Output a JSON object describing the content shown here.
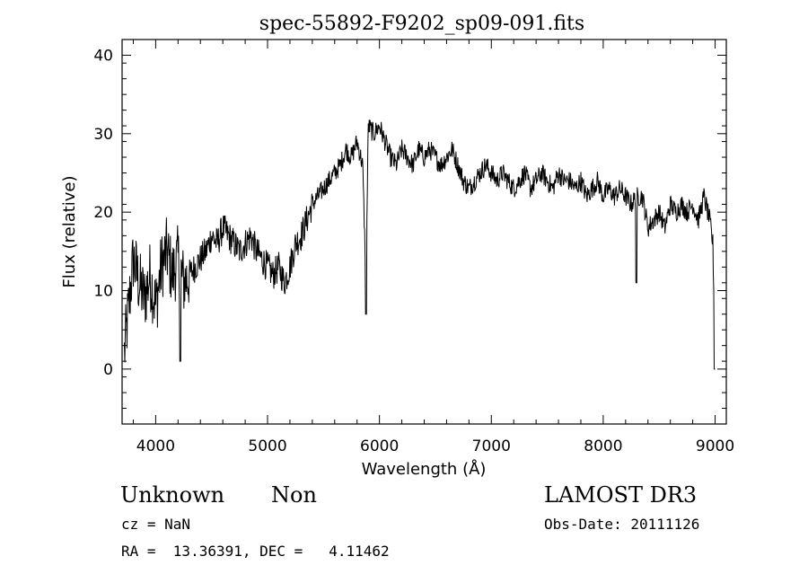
{
  "chart_data": {
    "type": "line",
    "title": "spec-55892-F9202_sp09-091.fits",
    "xlabel": "Wavelength (Å)",
    "ylabel": "Flux (relative)",
    "xlim": [
      3700,
      9100
    ],
    "ylim": [
      -7,
      42
    ],
    "xticks": [
      4000,
      5000,
      6000,
      7000,
      8000,
      9000
    ],
    "yticks": [
      0,
      10,
      20,
      30,
      40
    ],
    "grid": false,
    "series": [
      {
        "name": "flux",
        "color": "#000000",
        "x": [
          3720,
          3760,
          3800,
          3850,
          3900,
          3950,
          4000,
          4050,
          4100,
          4150,
          4200,
          4250,
          4300,
          4350,
          4400,
          4450,
          4500,
          4550,
          4600,
          4650,
          4700,
          4750,
          4800,
          4850,
          4900,
          4950,
          5000,
          5050,
          5100,
          5150,
          5200,
          5250,
          5300,
          5350,
          5400,
          5450,
          5500,
          5550,
          5600,
          5650,
          5700,
          5750,
          5800,
          5850,
          5880,
          5900,
          5950,
          6000,
          6050,
          6100,
          6150,
          6200,
          6250,
          6300,
          6350,
          6400,
          6450,
          6500,
          6550,
          6600,
          6650,
          6700,
          6750,
          6800,
          6850,
          6900,
          6950,
          7000,
          7050,
          7100,
          7150,
          7200,
          7250,
          7300,
          7350,
          7400,
          7450,
          7500,
          7550,
          7600,
          7650,
          7700,
          7750,
          7800,
          7850,
          7900,
          7950,
          8000,
          8050,
          8100,
          8150,
          8200,
          8250,
          8300,
          8350,
          8400,
          8450,
          8500,
          8550,
          8600,
          8650,
          8700,
          8750,
          8800,
          8850,
          8900,
          8950,
          8980,
          9000
        ],
        "y": [
          2,
          8,
          14,
          11,
          9,
          12,
          8,
          13,
          15,
          12,
          14,
          11,
          12,
          13,
          14,
          15,
          17,
          16,
          18,
          17,
          16,
          15,
          16,
          17,
          15,
          14,
          13,
          12,
          13,
          11,
          13,
          16,
          17,
          19,
          21,
          22,
          23,
          24,
          25,
          26,
          28,
          27,
          29,
          26,
          11,
          31,
          30,
          31,
          29,
          27,
          26,
          28,
          27,
          26,
          28,
          27,
          28,
          27,
          26,
          27,
          28,
          26,
          24,
          23,
          24,
          25,
          26,
          25,
          24,
          25,
          24,
          23,
          24,
          25,
          23,
          24,
          25,
          24,
          23,
          25,
          24,
          24,
          23,
          24,
          22,
          23,
          24,
          22,
          23,
          22,
          23,
          22,
          21,
          22,
          22,
          18,
          19,
          20,
          18,
          21,
          20,
          21,
          20,
          21,
          19,
          22,
          19,
          16,
          1
        ]
      }
    ]
  },
  "info": {
    "object_class": "Unknown",
    "subclass": "Non",
    "survey": "LAMOST DR3",
    "redshift": "cz = NaN",
    "obs_date": "Obs-Date: 20111126",
    "coords": "RA =  13.36391, DEC =   4.11462"
  }
}
